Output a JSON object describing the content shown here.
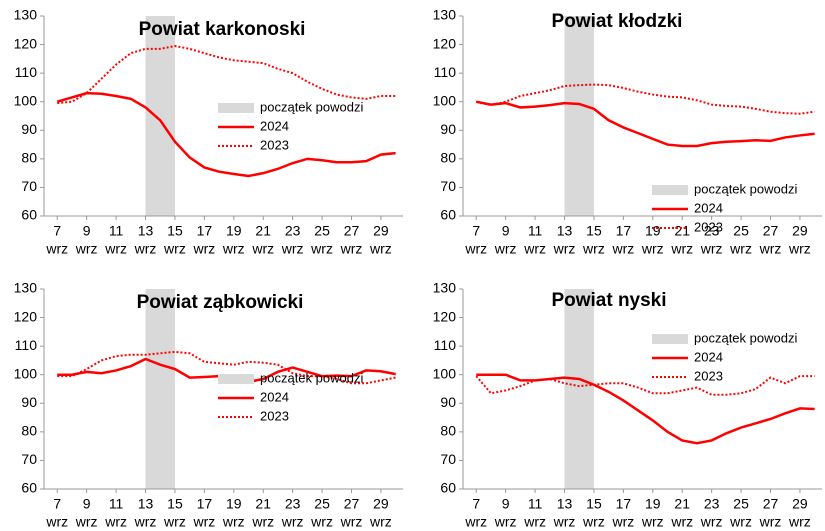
{
  "chart_data": [
    {
      "type": "line",
      "title": "Powiat karkonoski",
      "x": [
        7,
        8,
        9,
        10,
        11,
        12,
        13,
        14,
        15,
        16,
        17,
        18,
        19,
        20,
        21,
        22,
        23,
        24,
        25,
        26,
        27,
        28,
        29,
        30
      ],
      "xlim": [
        6.1,
        30.5
      ],
      "xticks": [
        7,
        9,
        11,
        13,
        15,
        17,
        19,
        21,
        23,
        25,
        27,
        29
      ],
      "x_tick_sublabel": "wrz",
      "ylim": [
        60,
        130
      ],
      "yticks": [
        60,
        70,
        80,
        90,
        100,
        110,
        120,
        130
      ],
      "band": {
        "name": "początek powodzi",
        "from": 13,
        "to": 15,
        "color": "#d9d9d9"
      },
      "series": [
        {
          "name": "2024",
          "color": "#ff0000",
          "style": "solid",
          "values": [
            100,
            101.5,
            103,
            102.8,
            102,
            101,
            98,
            93.5,
            86,
            80.5,
            77,
            75.5,
            74.7,
            74,
            75,
            76.5,
            78.5,
            80,
            79.5,
            78.8,
            78.8,
            79.2,
            81.5,
            82
          ]
        },
        {
          "name": "2023",
          "color": "#ff0000",
          "style": "dotted",
          "values": [
            99.5,
            100,
            103,
            108,
            113,
            117,
            118.5,
            118.5,
            119.5,
            118.5,
            117,
            115.5,
            114.5,
            114,
            113.5,
            111.5,
            110,
            107,
            104.5,
            102.5,
            101.5,
            101,
            102,
            102
          ]
        }
      ]
    },
    {
      "type": "line",
      "title": "Powiat kłodzki",
      "x": [
        7,
        8,
        9,
        10,
        11,
        12,
        13,
        14,
        15,
        16,
        17,
        18,
        19,
        20,
        21,
        22,
        23,
        24,
        25,
        26,
        27,
        28,
        29,
        30
      ],
      "xlim": [
        6.1,
        30.5
      ],
      "xticks": [
        7,
        9,
        11,
        13,
        15,
        17,
        19,
        21,
        23,
        25,
        27,
        29
      ],
      "x_tick_sublabel": "wrz",
      "ylim": [
        60,
        130
      ],
      "yticks": [
        60,
        70,
        80,
        90,
        100,
        110,
        120,
        130
      ],
      "band": {
        "name": "początek powodzi",
        "from": 13,
        "to": 15,
        "color": "#d9d9d9"
      },
      "series": [
        {
          "name": "2024",
          "color": "#ff0000",
          "style": "solid",
          "values": [
            100,
            99,
            99.5,
            98,
            98.3,
            98.8,
            99.5,
            99.2,
            97.5,
            93.5,
            91,
            89,
            87,
            85,
            84.5,
            84.5,
            85.5,
            86,
            86.2,
            86.5,
            86.3,
            87.5,
            88.2,
            88.8
          ]
        },
        {
          "name": "2023",
          "color": "#ff0000",
          "style": "dotted",
          "values": [
            100,
            98.8,
            100,
            102,
            103,
            104,
            105.5,
            105.8,
            106,
            105.8,
            104.8,
            103.5,
            102.5,
            101.8,
            101.5,
            100.5,
            99,
            98.5,
            98.3,
            97.5,
            96.5,
            96,
            95.8,
            96.5
          ]
        }
      ]
    },
    {
      "type": "line",
      "title": "Powiat ząbkowicki",
      "x": [
        7,
        8,
        9,
        10,
        11,
        12,
        13,
        14,
        15,
        16,
        17,
        18,
        19,
        20,
        21,
        22,
        23,
        24,
        25,
        26,
        27,
        28,
        29,
        30
      ],
      "xlim": [
        6.1,
        30.5
      ],
      "xticks": [
        7,
        9,
        11,
        13,
        15,
        17,
        19,
        21,
        23,
        25,
        27,
        29
      ],
      "x_tick_sublabel": "wrz",
      "ylim": [
        60,
        130
      ],
      "yticks": [
        60,
        70,
        80,
        90,
        100,
        110,
        120,
        130
      ],
      "band": {
        "name": "początek powodzi",
        "from": 13,
        "to": 15,
        "color": "#d9d9d9"
      },
      "series": [
        {
          "name": "2024",
          "color": "#ff0000",
          "style": "solid",
          "values": [
            100,
            100,
            101,
            100.5,
            101.5,
            103,
            105.5,
            103.5,
            102,
            99,
            99.2,
            99.5,
            98.5,
            97.5,
            98.5,
            101,
            102.5,
            101,
            99.5,
            99.7,
            99.5,
            101.5,
            101.2,
            100.2
          ]
        },
        {
          "name": "2023",
          "color": "#ff0000",
          "style": "dotted",
          "values": [
            99.5,
            99.5,
            102,
            105,
            106.5,
            107,
            107,
            107.5,
            108,
            107.5,
            104.5,
            104,
            103.5,
            104.5,
            104.2,
            103.5,
            100.5,
            99.5,
            99.5,
            98.5,
            97,
            97,
            98,
            99
          ]
        }
      ]
    },
    {
      "type": "line",
      "title": "Powiat nyski",
      "x": [
        7,
        8,
        9,
        10,
        11,
        12,
        13,
        14,
        15,
        16,
        17,
        18,
        19,
        20,
        21,
        22,
        23,
        24,
        25,
        26,
        27,
        28,
        29,
        30
      ],
      "xlim": [
        6.1,
        30.5
      ],
      "xticks": [
        7,
        9,
        11,
        13,
        15,
        17,
        19,
        21,
        23,
        25,
        27,
        29
      ],
      "x_tick_sublabel": "wrz",
      "ylim": [
        60,
        130
      ],
      "yticks": [
        60,
        70,
        80,
        90,
        100,
        110,
        120,
        130
      ],
      "band": {
        "name": "początek powodzi",
        "from": 13,
        "to": 15,
        "color": "#d9d9d9"
      },
      "series": [
        {
          "name": "2024",
          "color": "#ff0000",
          "style": "solid",
          "values": [
            100,
            100,
            100,
            98,
            98,
            98.5,
            99,
            98.5,
            96.5,
            94,
            91,
            87.5,
            84,
            80,
            77,
            76,
            77,
            79.5,
            81.5,
            83,
            84.5,
            86.5,
            88.2,
            88
          ]
        },
        {
          "name": "2023",
          "color": "#ff0000",
          "style": "dotted",
          "values": [
            99.5,
            93.5,
            94.5,
            96,
            98,
            98.5,
            97,
            96,
            96.5,
            97,
            97,
            95.5,
            93.5,
            93.5,
            94.5,
            95.5,
            93,
            93,
            93.5,
            95,
            99,
            97,
            99.5,
            99.5
          ]
        }
      ]
    }
  ]
}
